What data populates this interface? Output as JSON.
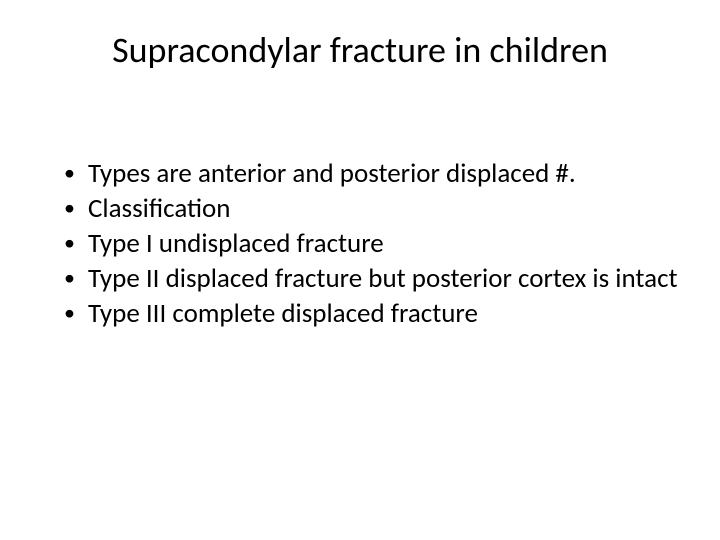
{
  "slide": {
    "title": "Supracondylar fracture in children",
    "title_fontsize": 36,
    "bullets": [
      "Types are anterior and posterior displaced #.",
      "Classification",
      "Type I undisplaced fracture",
      "Type II displaced fracture but posterior cortex is intact",
      "Type III complete displaced fracture"
    ],
    "bullet_fontsize": 27,
    "background_color": "#ffffff",
    "text_color": "#000000",
    "font_family": "Calibri"
  }
}
